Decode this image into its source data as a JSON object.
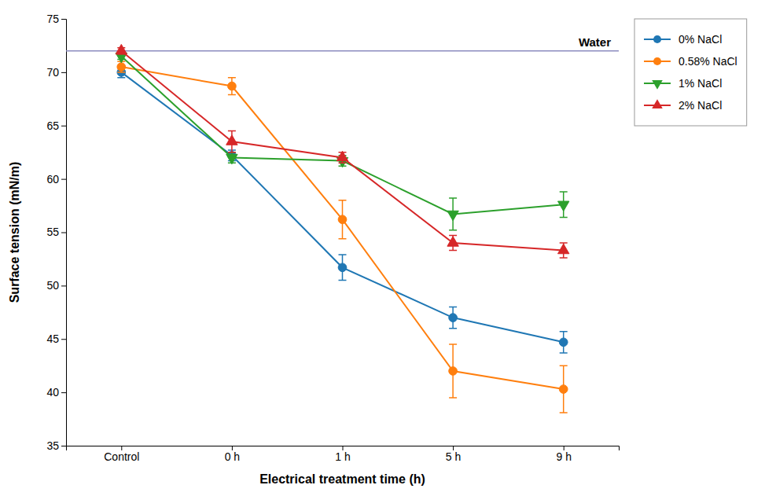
{
  "chart_data": {
    "type": "line",
    "categories": [
      "Control",
      "0 h",
      "1 h",
      "5 h",
      "9 h"
    ],
    "series": [
      {
        "name": "0% NaCl",
        "marker": "circle",
        "values": [
          70.0,
          62.2,
          51.7,
          47.0,
          44.7
        ],
        "errors": [
          0.5,
          0.5,
          1.2,
          1.0,
          1.0
        ]
      },
      {
        "name": "0.58% NaCl",
        "marker": "circle",
        "values": [
          70.5,
          68.7,
          56.2,
          42.0,
          40.3
        ],
        "errors": [
          0.5,
          0.8,
          1.8,
          2.5,
          2.2
        ]
      },
      {
        "name": "1% NaCl",
        "marker": "triangle-down",
        "values": [
          71.5,
          62.0,
          61.7,
          56.7,
          57.6
        ],
        "errors": [
          0.3,
          0.5,
          0.5,
          1.5,
          1.2
        ]
      },
      {
        "name": "2% NaCl",
        "marker": "triangle-up",
        "values": [
          72.0,
          63.5,
          62.0,
          54.0,
          53.3
        ],
        "errors": [
          0.3,
          1.0,
          0.5,
          0.7,
          0.7
        ]
      }
    ],
    "water_line": {
      "value": 72.0,
      "label": "Water"
    },
    "xlabel": "Electrical treatment time (h)",
    "ylabel": "Surface tension (mN/m)",
    "ylim": [
      35,
      75
    ],
    "yticks": [
      35,
      40,
      45,
      50,
      55,
      60,
      65,
      70,
      75
    ],
    "grid": false,
    "legend": "right"
  }
}
